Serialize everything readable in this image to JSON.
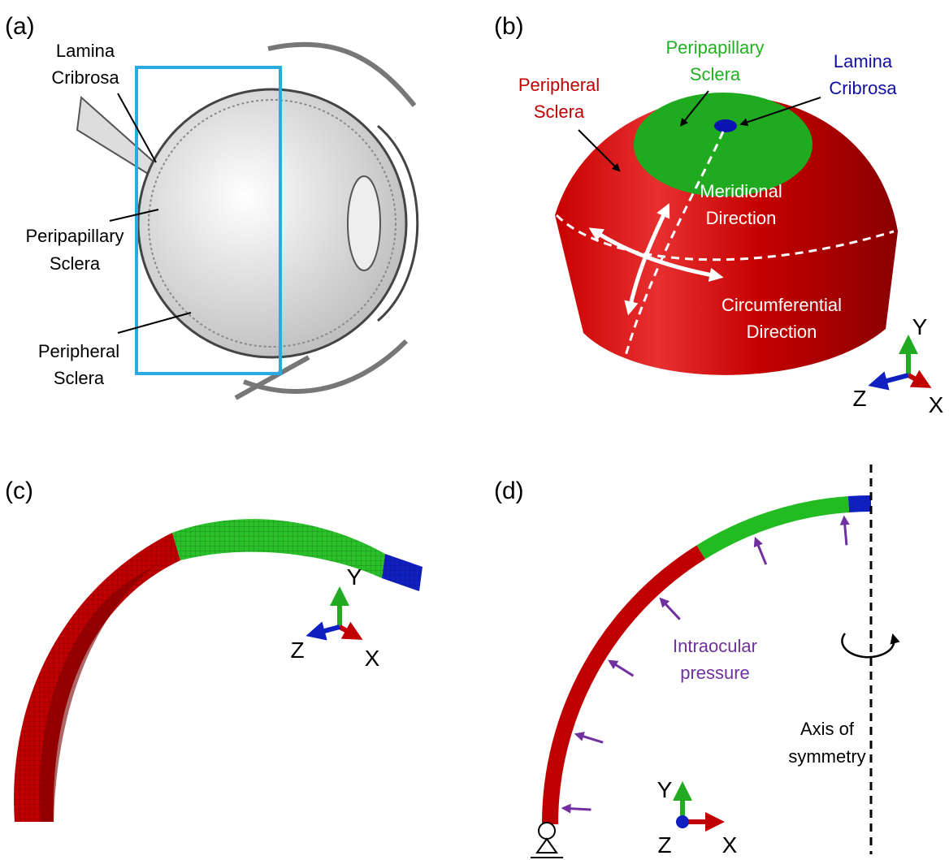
{
  "panels": [
    {
      "label": "(a)",
      "annotations": [
        {
          "lines": [
            "Lamina",
            "Cribrosa"
          ]
        },
        {
          "lines": [
            "Peripapillary",
            "Sclera"
          ]
        },
        {
          "lines": [
            "Peripheral",
            "Sclera"
          ]
        }
      ]
    },
    {
      "label": "(b)",
      "annotations": [
        {
          "lines": [
            "Peripheral",
            "Sclera"
          ]
        },
        {
          "lines": [
            "Peripapillary",
            "Sclera"
          ]
        },
        {
          "lines": [
            "Lamina",
            "Cribrosa"
          ]
        },
        {
          "lines": [
            "Meridional",
            "Direction"
          ]
        },
        {
          "lines": [
            "Circumferential",
            "Direction"
          ]
        }
      ],
      "axes": {
        "y": "Y",
        "z": "Z",
        "x": "X"
      }
    },
    {
      "label": "(c)",
      "axes": {
        "y": "Y",
        "z": "Z",
        "x": "X"
      }
    },
    {
      "label": "(d)",
      "annotations": [
        {
          "lines": [
            "Intraocular",
            "pressure"
          ]
        },
        {
          "lines": [
            "Axis of",
            "symmetry"
          ]
        }
      ],
      "axes": {
        "y": "Y",
        "z": "Z",
        "x": "X"
      }
    }
  ]
}
